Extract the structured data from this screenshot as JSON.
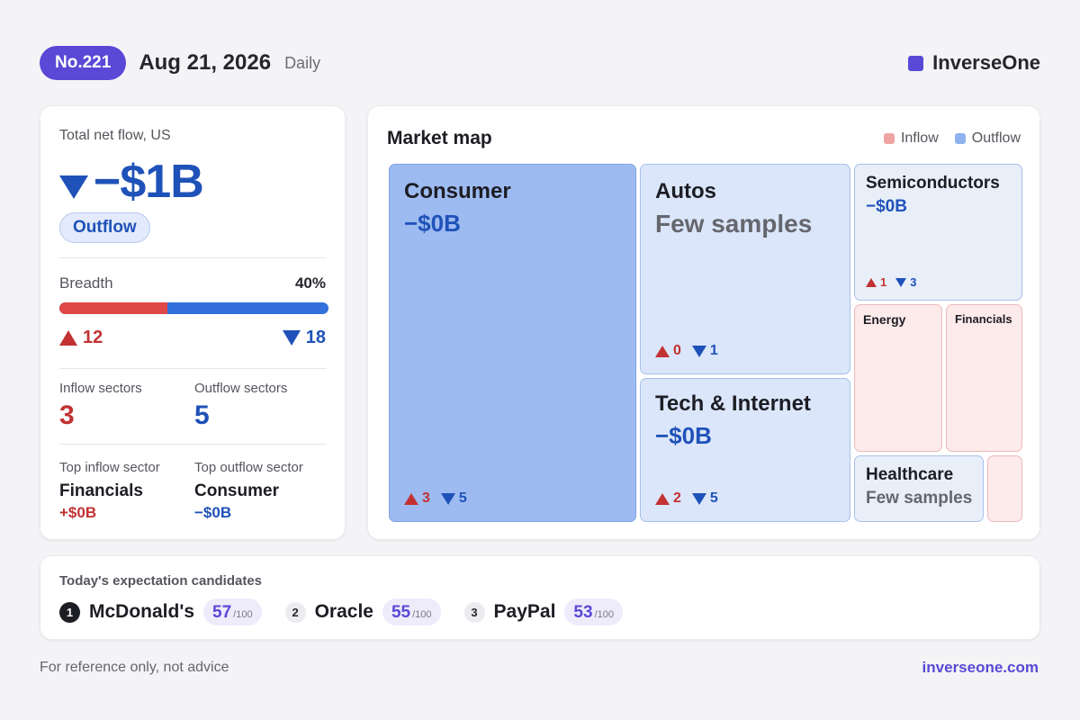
{
  "header": {
    "issue": "No.221",
    "date": "Aug 21, 2026",
    "period": "Daily",
    "brand": "InverseOne",
    "brand_color": "#5a48d6"
  },
  "summary": {
    "label": "Total net flow, US",
    "value": "−$1B",
    "direction_icon": "triangle-down-icon",
    "badge": "Outflow",
    "breadth_label": "Breadth",
    "breadth_pct": "40%",
    "breadth_fraction": 0.4,
    "up_count": "12",
    "down_count": "18",
    "inflow_sectors_label": "Inflow sectors",
    "inflow_sectors": "3",
    "outflow_sectors_label": "Outflow sectors",
    "outflow_sectors": "5",
    "top_inflow_label": "Top inflow sector",
    "top_inflow_name": "Financials",
    "top_inflow_value": "+$0B",
    "top_outflow_label": "Top outflow sector",
    "top_outflow_name": "Consumer",
    "top_outflow_value": "−$0B"
  },
  "market_map": {
    "title": "Market map",
    "legend": [
      {
        "label": "Inflow",
        "color": "#f0a3a3"
      },
      {
        "label": "Outflow",
        "color": "#8fb1ee"
      }
    ],
    "tiles": {
      "consumer": {
        "name": "Consumer",
        "value": "−$0B",
        "up": "3",
        "down": "5"
      },
      "autos": {
        "name": "Autos",
        "note": "Few samples",
        "up": "0",
        "down": "1"
      },
      "tech": {
        "name": "Tech & Internet",
        "value": "−$0B",
        "up": "2",
        "down": "5"
      },
      "semis": {
        "name": "Semiconductors",
        "value": "−$0B",
        "up": "1",
        "down": "3"
      },
      "energy": {
        "name": "Energy"
      },
      "financials": {
        "name": "Financials"
      },
      "healthcare": {
        "name": "Healthcare",
        "note": "Few samples"
      }
    }
  },
  "candidates": {
    "title": "Today's expectation candidates",
    "items": [
      {
        "rank": "1",
        "name": "McDonald's",
        "score": "57",
        "max": "/100"
      },
      {
        "rank": "2",
        "name": "Oracle",
        "score": "55",
        "max": "/100"
      },
      {
        "rank": "3",
        "name": "PayPal",
        "score": "53",
        "max": "/100"
      }
    ]
  },
  "footer": {
    "disclaimer": "For reference only, not advice",
    "site": "inverseone.com"
  }
}
